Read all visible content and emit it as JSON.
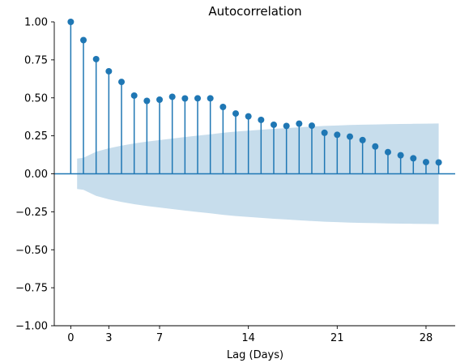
{
  "chart_data": {
    "type": "stem",
    "title": "Autocorrelation",
    "xlabel": "Lag (Days)",
    "ylabel": "",
    "xlim": [
      -1.3,
      30.3
    ],
    "ylim": [
      -1.0,
      1.0
    ],
    "x_ticks": [
      0,
      3,
      7,
      14,
      21,
      28
    ],
    "x_tick_labels": [
      "0",
      "3",
      "7",
      "14",
      "21",
      "28"
    ],
    "y_ticks": [
      -1.0,
      -0.75,
      -0.5,
      -0.25,
      0.0,
      0.25,
      0.5,
      0.75,
      1.0
    ],
    "y_tick_labels": [
      "−1.00",
      "−0.75",
      "−0.50",
      "−0.25",
      "0.00",
      "0.25",
      "0.50",
      "0.75",
      "1.00"
    ],
    "grid": false,
    "colors": {
      "stem": "#1f77b4",
      "confidence_band": "#1f77b4"
    },
    "series": [
      {
        "lags": [
          0,
          1,
          2,
          3,
          4,
          5,
          6,
          7,
          8,
          9,
          10,
          11,
          12,
          13,
          14,
          15,
          16,
          17,
          18,
          19,
          20,
          21,
          22,
          23,
          24,
          25,
          26,
          27,
          28,
          29
        ],
        "values": [
          1.0,
          0.88,
          0.755,
          0.675,
          0.605,
          0.515,
          0.48,
          0.488,
          0.507,
          0.496,
          0.497,
          0.497,
          0.44,
          0.397,
          0.378,
          0.355,
          0.323,
          0.315,
          0.33,
          0.317,
          0.27,
          0.257,
          0.245,
          0.222,
          0.18,
          0.143,
          0.122,
          0.102,
          0.077,
          0.075
        ]
      }
    ],
    "confidence_band": {
      "lags": [
        0.5,
        1,
        2,
        3,
        4,
        5,
        6,
        7,
        8,
        9,
        10,
        11,
        12,
        13,
        14,
        15,
        16,
        17,
        18,
        19,
        20,
        21,
        22,
        23,
        24,
        25,
        26,
        27,
        28,
        29
      ],
      "upper": [
        0.1,
        0.105,
        0.145,
        0.168,
        0.185,
        0.2,
        0.212,
        0.222,
        0.232,
        0.242,
        0.251,
        0.26,
        0.27,
        0.278,
        0.284,
        0.29,
        0.296,
        0.301,
        0.306,
        0.311,
        0.315,
        0.318,
        0.321,
        0.323,
        0.325,
        0.327,
        0.328,
        0.329,
        0.33,
        0.331
      ]
    }
  }
}
